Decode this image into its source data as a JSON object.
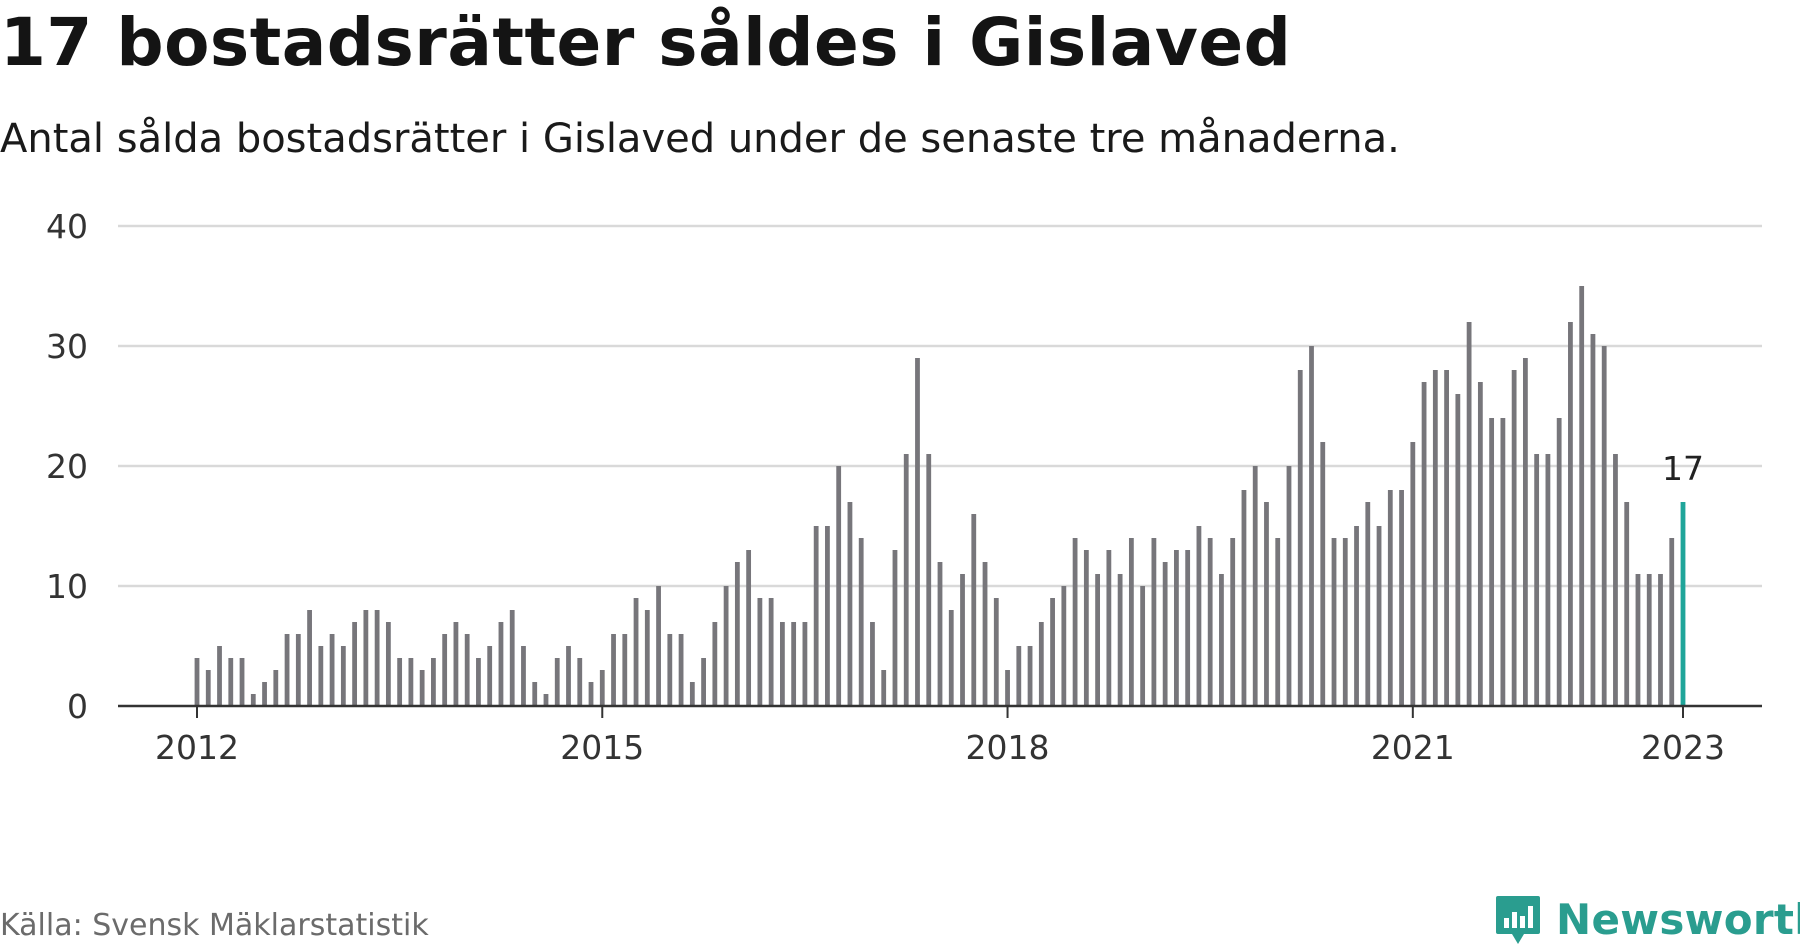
{
  "title": "17 bostadsrätter såldes i Gislaved",
  "subtitle": "Antal sålda bostadsrätter i Gislaved under de senaste tre månaderna.",
  "source": "Källa: Svensk Mäklarstatistik",
  "brand": {
    "name": "Newsworthy",
    "color": "#2a9d8f"
  },
  "colors": {
    "bar": "#77767b",
    "highlight": "#1fa59a",
    "grid": "#d9d9d9",
    "axis": "#333333"
  },
  "chart_data": {
    "type": "bar",
    "title": "17 bostadsrätter såldes i Gislaved",
    "subtitle": "Antal sålda bostadsrätter i Gislaved under de senaste tre månaderna.",
    "x_start": "2012-01",
    "frequency": "monthly",
    "ylim": [
      0,
      40
    ],
    "yticks": [
      0,
      10,
      20,
      30,
      40
    ],
    "xticks": [
      "2012",
      "2015",
      "2018",
      "2021",
      "2023"
    ],
    "grid": true,
    "highlight_last": true,
    "last_label": "17",
    "values": [
      4,
      3,
      5,
      4,
      4,
      1,
      2,
      3,
      6,
      6,
      8,
      5,
      6,
      5,
      7,
      8,
      8,
      7,
      4,
      4,
      3,
      4,
      6,
      7,
      6,
      4,
      5,
      7,
      8,
      5,
      2,
      1,
      4,
      5,
      4,
      2,
      3,
      6,
      6,
      9,
      8,
      10,
      6,
      6,
      2,
      4,
      7,
      10,
      12,
      13,
      9,
      9,
      7,
      7,
      7,
      15,
      15,
      20,
      17,
      14,
      7,
      3,
      13,
      21,
      29,
      21,
      12,
      8,
      11,
      16,
      12,
      9,
      3,
      5,
      5,
      7,
      9,
      10,
      14,
      13,
      11,
      13,
      11,
      14,
      10,
      14,
      12,
      13,
      13,
      15,
      14,
      11,
      14,
      18,
      20,
      17,
      14,
      20,
      28,
      30,
      22,
      14,
      14,
      15,
      17,
      15,
      18,
      18,
      22,
      27,
      28,
      28,
      26,
      32,
      27,
      24,
      24,
      28,
      29,
      21,
      21,
      24,
      32,
      35,
      31,
      30,
      21,
      17,
      11,
      11,
      11,
      14,
      17
    ]
  }
}
